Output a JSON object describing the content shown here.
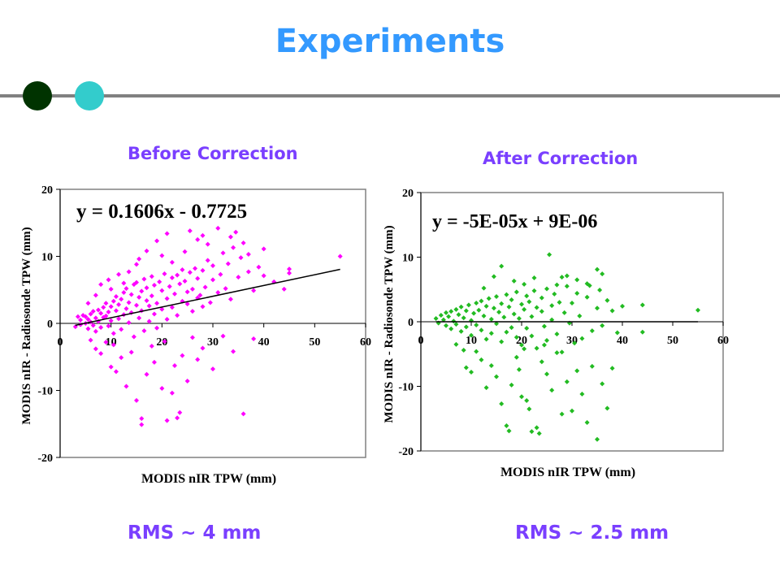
{
  "slide": {
    "title": "Experiments",
    "title_color": "#3399ff",
    "accent_color": "#7a3fff",
    "line_color": "#808080",
    "dot_colors": [
      "#003300",
      "#33cccc"
    ]
  },
  "panels": [
    {
      "heading": "Before Correction",
      "rms": "RMS ~ 4 mm"
    },
    {
      "heading": "After Correction",
      "rms": "RMS ~ 2.5 mm"
    }
  ],
  "chart_data": [
    {
      "type": "scatter",
      "xlabel": "MODIS nIR TPW (mm)",
      "ylabel": "MODIS nIR - Radiosonde TPW (mm)",
      "xlim": [
        0,
        60
      ],
      "ylim": [
        -20,
        20
      ],
      "xticks": [
        0,
        10,
        20,
        30,
        40,
        50,
        60
      ],
      "yticks": [
        20,
        10,
        0,
        -10,
        -20
      ],
      "marker_color": "#ff00ff",
      "marker": "diamond",
      "trendline": {
        "equation": "y = 0.1606x - 0.7725",
        "slope": 0.1606,
        "intercept": -0.7725,
        "x_range": [
          3,
          55
        ]
      },
      "points": [
        [
          3,
          -0.5
        ],
        [
          3.5,
          1
        ],
        [
          4,
          -0.2
        ],
        [
          4,
          0.5
        ],
        [
          4.5,
          1.2
        ],
        [
          5,
          0
        ],
        [
          5,
          1
        ],
        [
          5.5,
          0.6
        ],
        [
          5.5,
          -0.8
        ],
        [
          6,
          1.4
        ],
        [
          6,
          0.2
        ],
        [
          6.5,
          -0.3
        ],
        [
          6.5,
          1.8
        ],
        [
          7,
          0.8
        ],
        [
          7,
          -1.2
        ],
        [
          7.5,
          2
        ],
        [
          7.5,
          0.3
        ],
        [
          8,
          1.5
        ],
        [
          8,
          -0.6
        ],
        [
          8.5,
          2.4
        ],
        [
          8.5,
          0.9
        ],
        [
          9,
          1.1
        ],
        [
          9,
          3
        ],
        [
          9.5,
          -0.4
        ],
        [
          9.5,
          1.7
        ],
        [
          10,
          2.5
        ],
        [
          10,
          0.4
        ],
        [
          10.5,
          3.3
        ],
        [
          10.5,
          -1.5
        ],
        [
          11,
          1.9
        ],
        [
          11,
          4
        ],
        [
          11.5,
          0.7
        ],
        [
          11.5,
          2.8
        ],
        [
          12,
          3.6
        ],
        [
          12,
          -0.9
        ],
        [
          12.5,
          1.3
        ],
        [
          12.5,
          4.6
        ],
        [
          13,
          2.2
        ],
        [
          13,
          5.2
        ],
        [
          13.5,
          0.1
        ],
        [
          13.5,
          3.1
        ],
        [
          14,
          4.3
        ],
        [
          14,
          1.6
        ],
        [
          14.5,
          5.8
        ],
        [
          14.5,
          -2
        ],
        [
          15,
          2.7
        ],
        [
          15,
          6.1
        ],
        [
          15.5,
          0.8
        ],
        [
          15.5,
          3.9
        ],
        [
          16,
          4.8
        ],
        [
          16,
          1.9
        ],
        [
          16.5,
          6.6
        ],
        [
          16.5,
          -1.1
        ],
        [
          17,
          3.4
        ],
        [
          17,
          5.3
        ],
        [
          17.5,
          0.3
        ],
        [
          17.5,
          2.6
        ],
        [
          18,
          4.1
        ],
        [
          18,
          7
        ],
        [
          18.5,
          1.4
        ],
        [
          18.5,
          5.7
        ],
        [
          19,
          3
        ],
        [
          19,
          -0.7
        ],
        [
          19.5,
          6.2
        ],
        [
          20,
          2.1
        ],
        [
          20,
          4.9
        ],
        [
          20.5,
          7.4
        ],
        [
          21,
          3.7
        ],
        [
          21,
          0.6
        ],
        [
          21.5,
          5.5
        ],
        [
          22,
          6.8
        ],
        [
          22,
          2.4
        ],
        [
          22.5,
          4.4
        ],
        [
          23,
          7.2
        ],
        [
          23,
          1.2
        ],
        [
          23.5,
          5.9
        ],
        [
          24,
          3.3
        ],
        [
          24,
          8
        ],
        [
          24.5,
          6.3
        ],
        [
          25,
          2.9
        ],
        [
          25,
          4.7
        ],
        [
          25.5,
          7.6
        ],
        [
          26,
          5.1
        ],
        [
          26,
          1.8
        ],
        [
          26.5,
          8.2
        ],
        [
          27,
          3.8
        ],
        [
          27,
          6.7
        ],
        [
          27.5,
          4.2
        ],
        [
          28,
          7.9
        ],
        [
          28,
          2.5
        ],
        [
          28.5,
          5.4
        ],
        [
          29,
          9.4
        ],
        [
          29.5,
          3.1
        ],
        [
          30,
          6.5
        ],
        [
          30,
          8.6
        ],
        [
          31,
          4.6
        ],
        [
          31.5,
          7.3
        ],
        [
          32,
          10.5
        ],
        [
          32.5,
          5.2
        ],
        [
          33,
          8.9
        ],
        [
          33.5,
          3.6
        ],
        [
          34,
          11.3
        ],
        [
          35,
          6.9
        ],
        [
          35.5,
          9.8
        ],
        [
          36,
          12
        ],
        [
          37,
          7.7
        ],
        [
          38,
          4.9
        ],
        [
          39,
          8.4
        ],
        [
          40,
          7.1
        ],
        [
          42,
          6.2
        ],
        [
          44,
          5.1
        ],
        [
          45,
          7.5
        ],
        [
          55,
          10
        ],
        [
          6,
          -2.5
        ],
        [
          7,
          -3.8
        ],
        [
          8,
          -4.5
        ],
        [
          9,
          -2.8
        ],
        [
          10,
          -6.5
        ],
        [
          10.5,
          -3.2
        ],
        [
          11,
          -7.2
        ],
        [
          12,
          -5.1
        ],
        [
          13,
          -9.4
        ],
        [
          14,
          -4.3
        ],
        [
          15,
          -11.5
        ],
        [
          16,
          -15.1
        ],
        [
          16,
          -14.2
        ],
        [
          17,
          -7.6
        ],
        [
          18,
          -3.4
        ],
        [
          18.5,
          -5.8
        ],
        [
          20,
          -9.7
        ],
        [
          20.5,
          -2.7
        ],
        [
          21,
          -14.5
        ],
        [
          22,
          -10.4
        ],
        [
          22.5,
          -6.3
        ],
        [
          23,
          -14.1
        ],
        [
          23.5,
          -13.3
        ],
        [
          24,
          -4.8
        ],
        [
          25,
          -8.6
        ],
        [
          26,
          -2.1
        ],
        [
          27,
          -5.4
        ],
        [
          28,
          -3.7
        ],
        [
          30,
          -6.8
        ],
        [
          32,
          -1.9
        ],
        [
          34,
          -4.2
        ],
        [
          36,
          -13.5
        ],
        [
          38,
          -2.3
        ],
        [
          5.5,
          3
        ],
        [
          7,
          4.2
        ],
        [
          8,
          5.8
        ],
        [
          9.5,
          6.5
        ],
        [
          10,
          5.1
        ],
        [
          11.5,
          7.3
        ],
        [
          12.5,
          6
        ],
        [
          13.5,
          7.7
        ],
        [
          15,
          8.8
        ],
        [
          15.5,
          9.6
        ],
        [
          17,
          10.8
        ],
        [
          19,
          12.3
        ],
        [
          21,
          13.4
        ],
        [
          22,
          9.1
        ],
        [
          24.5,
          10.7
        ],
        [
          25.5,
          13.8
        ],
        [
          27,
          12.5
        ],
        [
          29,
          11.8
        ],
        [
          31,
          14.2
        ],
        [
          33.5,
          12.9
        ],
        [
          37,
          10.3
        ],
        [
          40,
          11.1
        ],
        [
          45,
          8.1
        ],
        [
          20,
          10.1
        ],
        [
          28,
          13.1
        ],
        [
          34.5,
          13.6
        ]
      ]
    },
    {
      "type": "scatter",
      "xlabel": "MODIS nIR TPW (mm)",
      "ylabel": "MODIS nIR - Radiosonde TPW (mm)",
      "xlim": [
        0,
        60
      ],
      "ylim": [
        -20,
        20
      ],
      "xticks": [
        0,
        10,
        20,
        30,
        40,
        50,
        60
      ],
      "yticks": [
        20,
        10,
        0,
        -10,
        -20
      ],
      "marker_color": "#22bb22",
      "marker": "diamond",
      "trendline": {
        "equation": "y = -5E-05x + 9E-06",
        "slope": -5e-05,
        "intercept": 9e-06,
        "x_range": [
          3,
          55
        ]
      },
      "points": [
        [
          3,
          0.5
        ],
        [
          3.5,
          -0.2
        ],
        [
          4,
          1
        ],
        [
          4.5,
          0.3
        ],
        [
          5,
          1.4
        ],
        [
          5,
          -0.6
        ],
        [
          5.5,
          0.8
        ],
        [
          6,
          1.6
        ],
        [
          6,
          -1.1
        ],
        [
          6.5,
          0.1
        ],
        [
          7,
          1.9
        ],
        [
          7,
          -0.4
        ],
        [
          7.5,
          1.1
        ],
        [
          8,
          2.3
        ],
        [
          8,
          -1.5
        ],
        [
          8.5,
          0.6
        ],
        [
          9,
          1.7
        ],
        [
          9,
          -0.8
        ],
        [
          9.5,
          2.6
        ],
        [
          10,
          0.2
        ],
        [
          10,
          -2.1
        ],
        [
          10.5,
          1.3
        ],
        [
          11,
          2.9
        ],
        [
          11,
          -0.5
        ],
        [
          11.5,
          1.8
        ],
        [
          12,
          3.2
        ],
        [
          12,
          -1.3
        ],
        [
          12.5,
          0.9
        ],
        [
          13,
          2.4
        ],
        [
          13,
          -2.7
        ],
        [
          13.5,
          3.6
        ],
        [
          14,
          0.4
        ],
        [
          14,
          -1.8
        ],
        [
          14.5,
          2.1
        ],
        [
          15,
          3.9
        ],
        [
          15,
          -0.3
        ],
        [
          15.5,
          1.5
        ],
        [
          16,
          -3.1
        ],
        [
          16,
          2.8
        ],
        [
          16.5,
          0.7
        ],
        [
          17,
          4.2
        ],
        [
          17,
          -1.6
        ],
        [
          17.5,
          2.3
        ],
        [
          18,
          -0.9
        ],
        [
          18,
          3.4
        ],
        [
          18.5,
          1.2
        ],
        [
          19,
          -2.4
        ],
        [
          19,
          4.6
        ],
        [
          19.5,
          0.5
        ],
        [
          20,
          2.7
        ],
        [
          20,
          -3.6
        ],
        [
          20.5,
          1.9
        ],
        [
          21,
          4
        ],
        [
          21,
          -1
        ],
        [
          21.5,
          3.1
        ],
        [
          22,
          -2.2
        ],
        [
          22,
          0.8
        ],
        [
          22.5,
          4.8
        ],
        [
          23,
          2.2
        ],
        [
          23,
          -4.1
        ],
        [
          24,
          1.6
        ],
        [
          24,
          3.7
        ],
        [
          24.5,
          -0.7
        ],
        [
          25,
          5.1
        ],
        [
          25,
          -2.9
        ],
        [
          26,
          2.5
        ],
        [
          26,
          0.3
        ],
        [
          26.5,
          4.3
        ],
        [
          27,
          -1.9
        ],
        [
          27.5,
          3
        ],
        [
          28,
          -4.7
        ],
        [
          28.5,
          1.4
        ],
        [
          29,
          5.5
        ],
        [
          29.5,
          -0.2
        ],
        [
          30,
          2.9
        ],
        [
          30.5,
          -3.3
        ],
        [
          31,
          4.4
        ],
        [
          31.5,
          0.9
        ],
        [
          32,
          -2.6
        ],
        [
          33,
          3.8
        ],
        [
          33.5,
          5.6
        ],
        [
          34,
          -1.4
        ],
        [
          35,
          2.1
        ],
        [
          35.5,
          4.9
        ],
        [
          36,
          -0.6
        ],
        [
          37,
          3.3
        ],
        [
          38,
          1.7
        ],
        [
          39,
          -1.7
        ],
        [
          40,
          2.4
        ],
        [
          44,
          2.6
        ],
        [
          44,
          -1.6
        ],
        [
          55,
          1.8
        ],
        [
          7,
          -3.5
        ],
        [
          8.5,
          -4.4
        ],
        [
          9,
          -7.1
        ],
        [
          10,
          -7.8
        ],
        [
          11,
          -4.6
        ],
        [
          12,
          -5.9
        ],
        [
          13,
          -10.2
        ],
        [
          14,
          -6.8
        ],
        [
          15,
          -8.5
        ],
        [
          16,
          -12.7
        ],
        [
          17,
          -16.1
        ],
        [
          17.5,
          -16.9
        ],
        [
          18,
          -9.8
        ],
        [
          19,
          -5.5
        ],
        [
          19.5,
          -7.4
        ],
        [
          20,
          -11.6
        ],
        [
          21,
          -12.2
        ],
        [
          21.5,
          -13.5
        ],
        [
          22,
          -17
        ],
        [
          23,
          -16.4
        ],
        [
          23.5,
          -17.3
        ],
        [
          24,
          -6.2
        ],
        [
          25,
          -8.1
        ],
        [
          26,
          -10.6
        ],
        [
          27,
          -4.8
        ],
        [
          28,
          -14.3
        ],
        [
          29,
          -9.3
        ],
        [
          30,
          -13.8
        ],
        [
          31,
          -7.6
        ],
        [
          32,
          -11.2
        ],
        [
          33,
          -15.6
        ],
        [
          34,
          -6.9
        ],
        [
          35,
          -18.2
        ],
        [
          36,
          -9.6
        ],
        [
          37,
          -13.4
        ],
        [
          38,
          -7.2
        ],
        [
          20.5,
          -4.2
        ],
        [
          24.5,
          -3.6
        ],
        [
          12.5,
          5.2
        ],
        [
          14.5,
          7
        ],
        [
          16,
          8.6
        ],
        [
          18.5,
          6.3
        ],
        [
          20.5,
          5.8
        ],
        [
          22.5,
          6.8
        ],
        [
          25.5,
          10.4
        ],
        [
          27,
          5.7
        ],
        [
          29,
          7.1
        ],
        [
          31,
          6.5
        ],
        [
          33,
          5.9
        ],
        [
          35,
          8.1
        ],
        [
          36,
          7.4
        ],
        [
          28,
          6.9
        ]
      ]
    }
  ]
}
